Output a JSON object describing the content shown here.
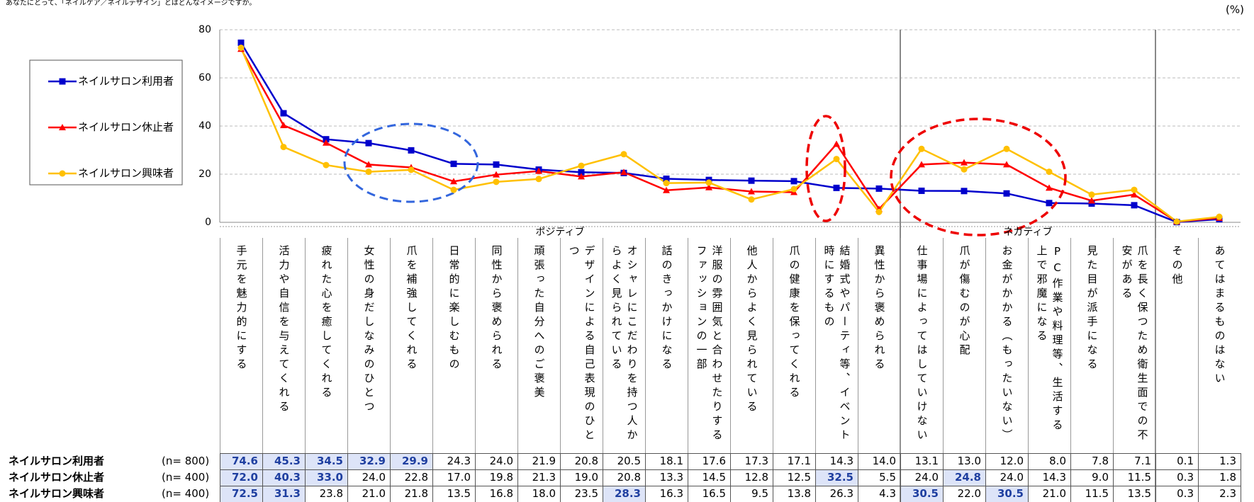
{
  "chart_data": {
    "type": "line",
    "title": "あなたにとって、「ネイルケア／ネイルデザイン」とはどんなイメージですか。",
    "unit": "(%)",
    "categories": [
      "手元を魅力的にする",
      "活力や自信を与えてくれる",
      "疲れた心を癒してくれる",
      "女性の身だしなみのひとつ",
      "爪を補強してくれる",
      "日常的に楽しむもの",
      "同性から褒められる",
      "頑張った自分へのご褒美",
      "デザインによる自己表現のひとつ",
      "オシャレにこだわりを持つ人からよく見られている",
      "話のきっかけになる",
      "洋服の雰囲気と合わせたりするファッションの一部",
      "他人からよく見られている",
      "爪の健康を保ってくれる",
      "結婚式やパーティ等、イベント時にするもの",
      "異性から褒められる",
      "仕事場によってはしていけない",
      "爪が傷むのが心配",
      "お金がかかる（もったいない）",
      "PC作業や料理等、生活する上で邪魔になる",
      "見た目が派手になる",
      "爪を長く保つため衛生面での不安がある",
      "その他",
      "あてはまるものはない"
    ],
    "groups": [
      {
        "label": "ポジティブ",
        "start": 0,
        "end": 15
      },
      {
        "label": "ネガティブ",
        "start": 16,
        "end": 21
      }
    ],
    "ylim": [
      0,
      80
    ],
    "yticks": [
      0,
      20,
      40,
      60,
      80
    ],
    "grid": true,
    "legend": "left",
    "series": [
      {
        "name": "ネイルサロン利用者",
        "n_label": "(n= 800)",
        "color": "#0000cc",
        "marker": "square",
        "values": [
          74.6,
          45.3,
          34.5,
          32.9,
          29.9,
          24.3,
          24,
          21.9,
          20.8,
          20.5,
          18.1,
          17.6,
          17.3,
          17.1,
          14.3,
          14,
          13.1,
          13,
          12,
          8,
          7.8,
          7.1,
          0.1,
          1.3
        ],
        "value_labels": [
          "74.6",
          "45.3",
          "34.5",
          "32.9",
          "29.9",
          "24.3",
          "24.0",
          "21.9",
          "20.8",
          "20.5",
          "18.1",
          "17.6",
          "17.3",
          "17.1",
          "14.3",
          "14.0",
          "13.1",
          "13.0",
          "12.0",
          "8.0",
          "7.8",
          "7.1",
          "0.1",
          "1.3"
        ]
      },
      {
        "name": "ネイルサロン休止者",
        "n_label": "(n= 400)",
        "color": "#ff0000",
        "marker": "triangle",
        "values": [
          72,
          40.3,
          33,
          24,
          22.8,
          17,
          19.8,
          21.3,
          19,
          20.8,
          13.3,
          14.5,
          12.8,
          12.5,
          32.5,
          5.5,
          24,
          24.8,
          24,
          14.3,
          9,
          11.5,
          0.3,
          1.8
        ],
        "value_labels": [
          "72.0",
          "40.3",
          "33.0",
          "24.0",
          "22.8",
          "17.0",
          "19.8",
          "21.3",
          "19.0",
          "20.8",
          "13.3",
          "14.5",
          "12.8",
          "12.5",
          "32.5",
          "5.5",
          "24.0",
          "24.8",
          "24.0",
          "14.3",
          "9.0",
          "11.5",
          "0.3",
          "1.8"
        ]
      },
      {
        "name": "ネイルサロン興味者",
        "n_label": "(n= 400)",
        "color": "#ffc000",
        "marker": "circle",
        "values": [
          72.5,
          31.3,
          23.8,
          21,
          21.8,
          13.5,
          16.8,
          18,
          23.5,
          28.3,
          16.3,
          16.5,
          9.5,
          13.8,
          26.3,
          4.3,
          30.5,
          22,
          30.5,
          21,
          11.5,
          13.5,
          0.3,
          2.3
        ],
        "value_labels": [
          "72.5",
          "31.3",
          "23.8",
          "21.0",
          "21.8",
          "13.5",
          "16.8",
          "18.0",
          "23.5",
          "28.3",
          "16.3",
          "16.5",
          "9.5",
          "13.8",
          "26.3",
          "4.3",
          "30.5",
          "22.0",
          "30.5",
          "21.0",
          "11.5",
          "13.5",
          "0.3",
          "2.3"
        ]
      }
    ]
  }
}
